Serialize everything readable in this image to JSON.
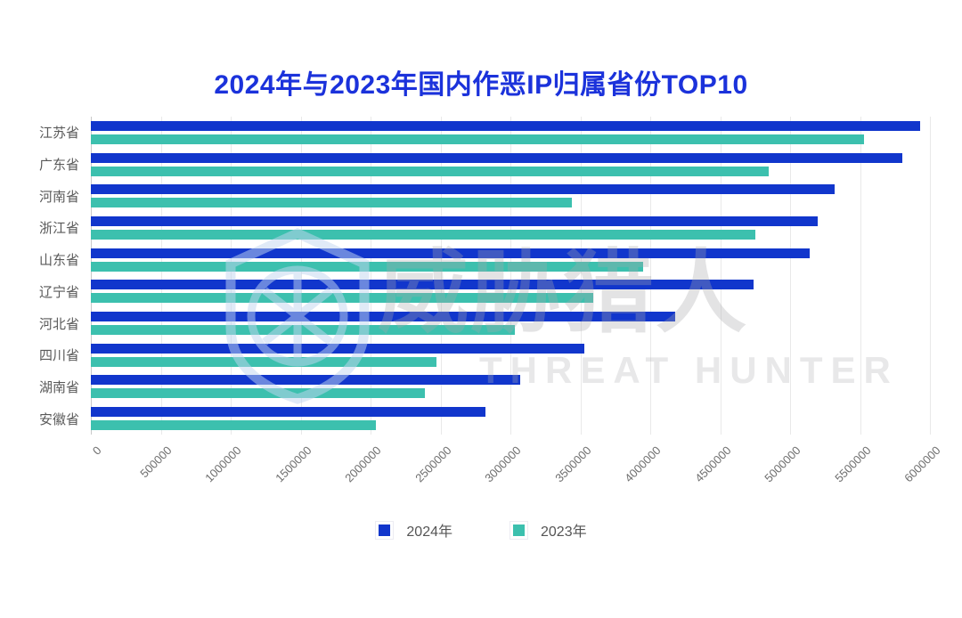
{
  "chart_data": {
    "type": "bar",
    "orientation": "horizontal",
    "title": "2024年与2023年国内作恶IP归属省份TOP10",
    "categories": [
      "江苏省",
      "广东省",
      "河南省",
      "浙江省",
      "山东省",
      "辽宁省",
      "河北省",
      "四川省",
      "湖南省",
      "安徽省"
    ],
    "series": [
      {
        "name": "2024年",
        "color": "#1136cc",
        "values": [
          5930000,
          5800000,
          5320000,
          5200000,
          5140000,
          4740000,
          4180000,
          3530000,
          3070000,
          2820000
        ]
      },
      {
        "name": "2023年",
        "color": "#3cc0ae",
        "values": [
          5530000,
          4850000,
          3440000,
          4750000,
          3950000,
          3590000,
          3030000,
          2470000,
          2390000,
          2040000
        ]
      }
    ],
    "xlim": [
      0,
      6000000
    ],
    "x_ticks": [
      0,
      500000,
      1000000,
      1500000,
      2000000,
      2500000,
      3000000,
      3500000,
      4000000,
      4500000,
      5000000,
      5500000,
      6000000
    ],
    "grid": true,
    "legend_position": "bottom"
  },
  "legend": {
    "items": [
      {
        "label": "2024年",
        "color": "#1136cc"
      },
      {
        "label": "2023年",
        "color": "#3cc0ae"
      }
    ]
  },
  "watermark": {
    "shield_icon": "threat-hunter-shield-icon",
    "text_cjk": "威胁猎人",
    "text_latin": "THREAT HUNTER"
  },
  "colors": {
    "title": "#1b32db",
    "bar_2024": "#1136cc",
    "bar_2023": "#3cc0ae",
    "gridline": "#e9e9e9",
    "category_label": "#595959",
    "tick_label": "#6e6e6e"
  }
}
